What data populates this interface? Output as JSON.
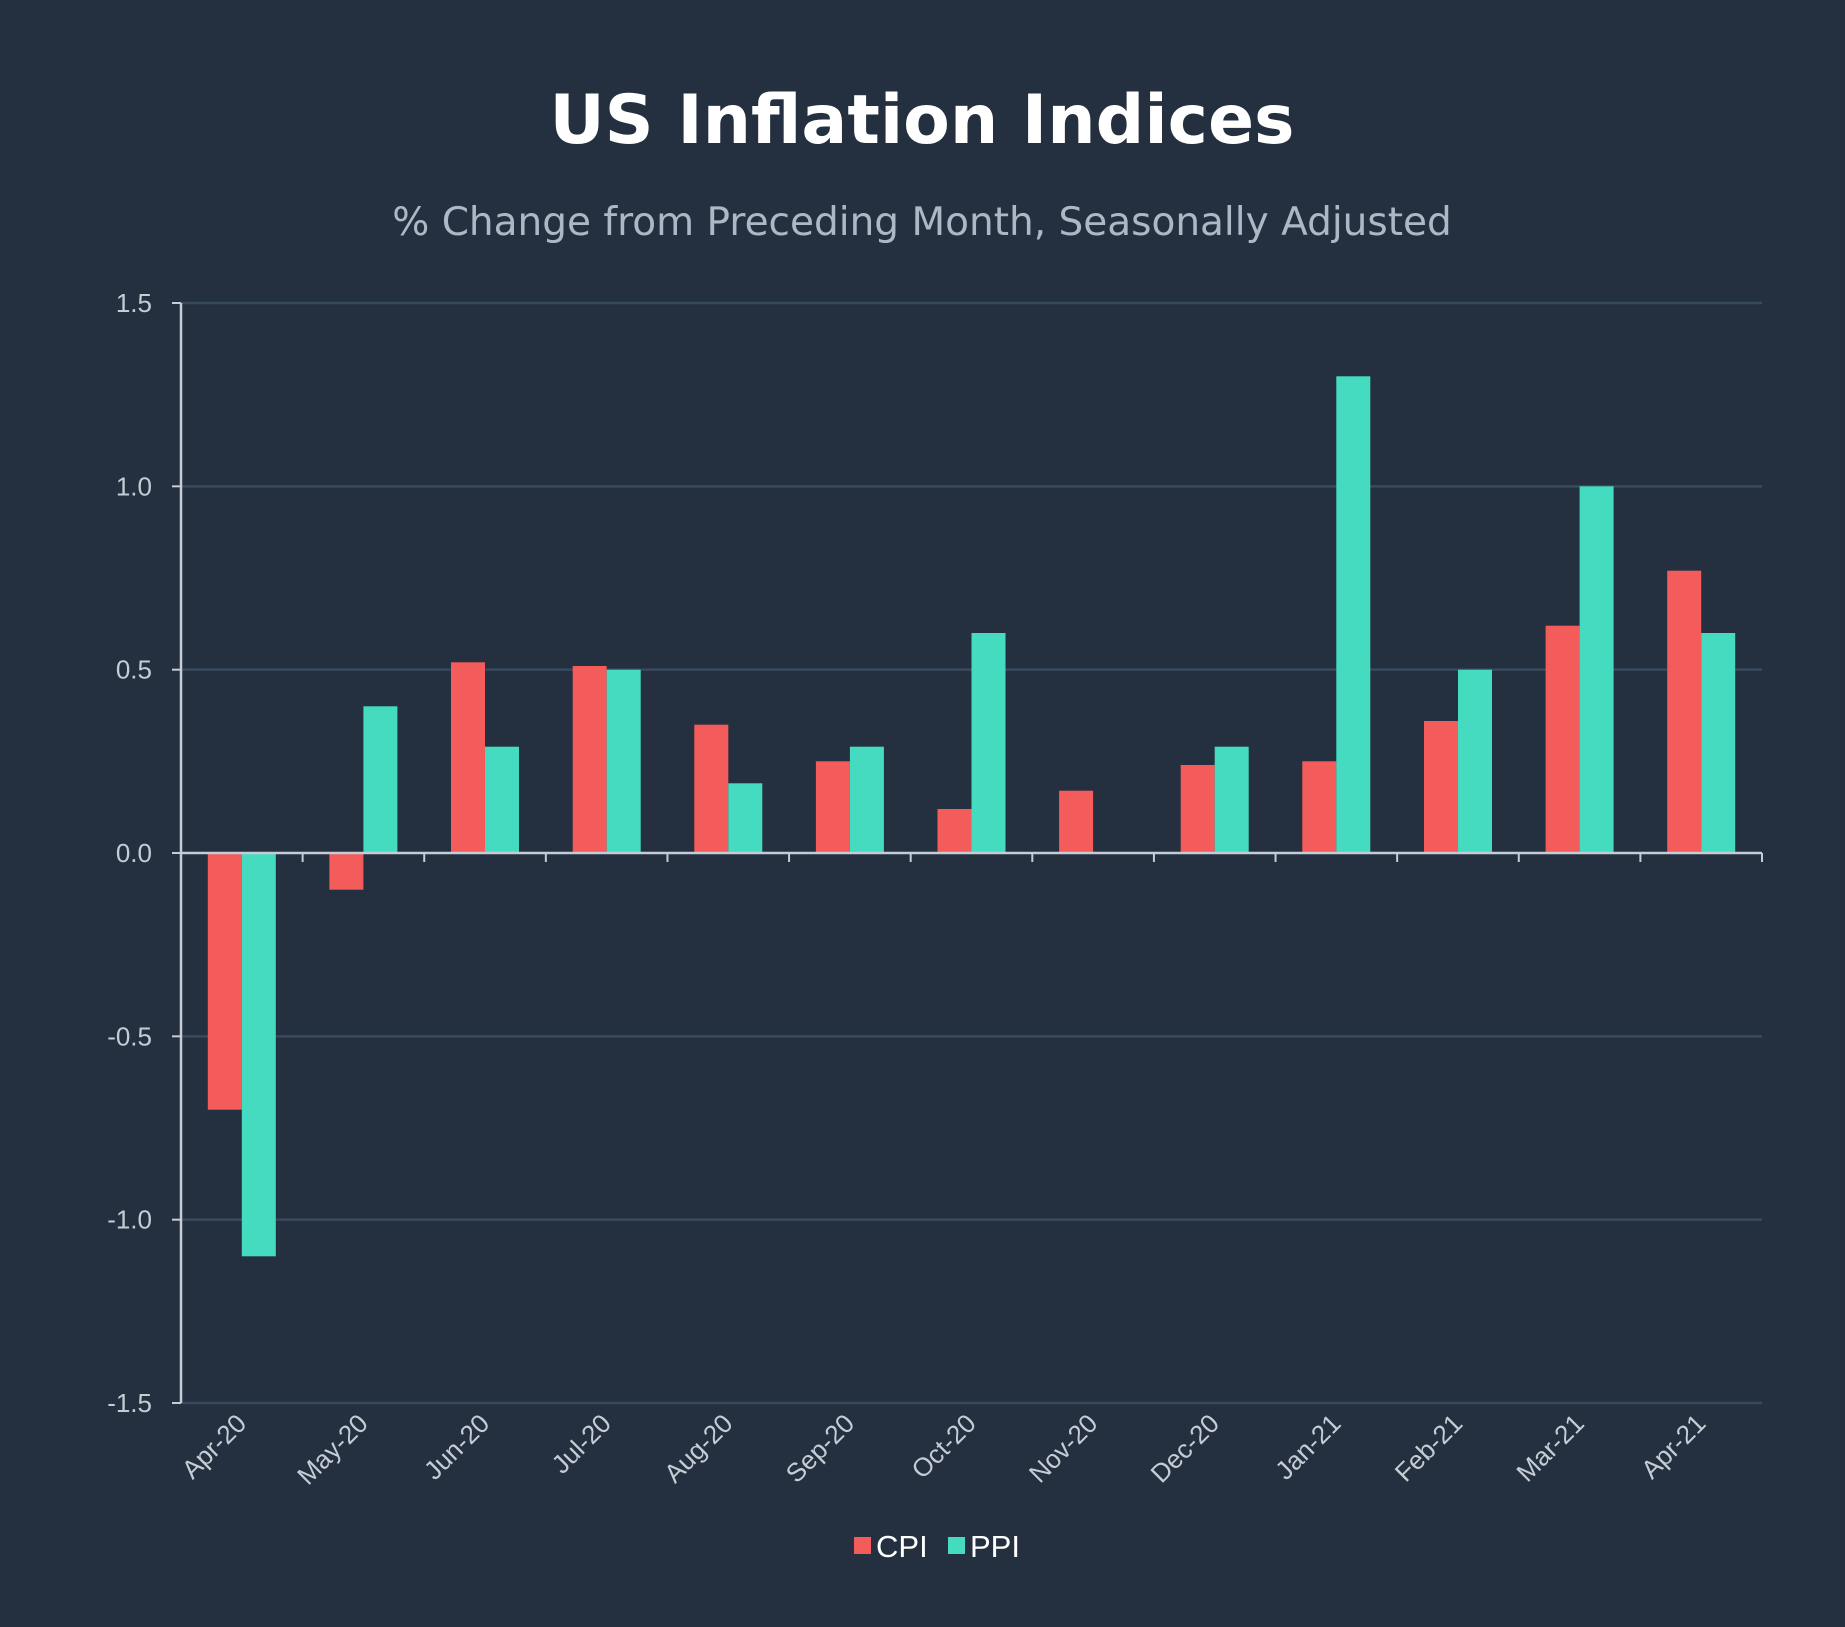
{
  "chart_data": {
    "type": "bar",
    "title": "US Inflation Indices",
    "subtitle": "% Change from Preceding  Month, Seasonally Adjusted",
    "xlabel": "",
    "ylabel": "",
    "ylim": [
      -1.5,
      1.5
    ],
    "yticks": [
      1.5,
      1.0,
      0.5,
      0.0,
      -0.5,
      -1.0,
      -1.5
    ],
    "ytick_labels": [
      "1.5",
      "1.0",
      "0.5",
      "0.0",
      "-0.5",
      "-1.0",
      "-1.5"
    ],
    "grid": true,
    "legend_position": "bottom-center",
    "categories": [
      "Apr-20",
      "May-20",
      "Jun-20",
      "Jul-20",
      "Aug-20",
      "Sep-20",
      "Oct-20",
      "Nov-20",
      "Dec-20",
      "Jan-21",
      "Feb-21",
      "Mar-21",
      "Apr-21"
    ],
    "series": [
      {
        "name": "CPI",
        "color": "#f45b5b",
        "values": [
          -0.7,
          -0.1,
          0.52,
          0.51,
          0.35,
          0.25,
          0.12,
          0.17,
          0.24,
          0.25,
          0.36,
          0.62,
          0.77
        ]
      },
      {
        "name": "PPI",
        "color": "#45dbc1",
        "values": [
          -1.1,
          0.4,
          0.29,
          0.5,
          0.19,
          0.29,
          0.6,
          0.0,
          0.29,
          1.3,
          0.5,
          1.0,
          0.6
        ]
      }
    ]
  },
  "colors": {
    "background": "#243040",
    "gridline": "#384a5e",
    "axis": "#c6ccd4"
  }
}
